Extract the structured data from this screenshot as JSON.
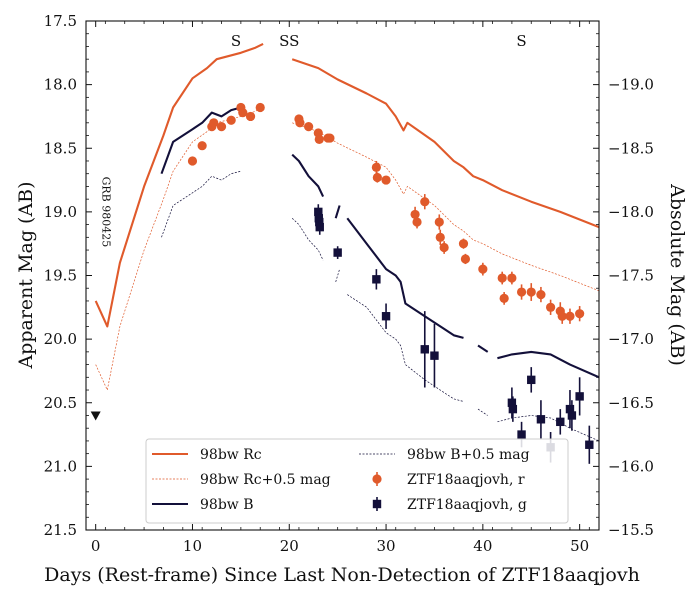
{
  "chart_data": {
    "type": "scatter",
    "xlabel": "Days (Rest-frame) Since Last Non-Detection of ZTF18aaqjovh",
    "ylabel": "Apparent Mag (AB)",
    "ylabel_right": "Absolute Mag (AB)",
    "xlim": [
      -1,
      52
    ],
    "ylim": [
      21.5,
      17.5
    ],
    "ylim_right": [
      -15.5,
      -19.5
    ],
    "xticks": [
      0,
      10,
      20,
      30,
      40,
      50
    ],
    "yticks": [
      17.5,
      18.0,
      18.5,
      19.0,
      19.5,
      20.0,
      20.5,
      21.0,
      21.5
    ],
    "yticks_right": [
      -19.0,
      -18.5,
      -18.0,
      -17.5,
      -17.0,
      -16.5,
      -16.0,
      -15.5
    ],
    "colors": {
      "r": "#e05a2b",
      "g": "#13103a"
    },
    "annotations": [
      {
        "text": "S",
        "x": 14.5,
        "y": 17.65
      },
      {
        "text": "SS",
        "x": 20.0,
        "y": 17.65
      },
      {
        "text": "S",
        "x": 44.0,
        "y": 17.65
      },
      {
        "text": "GRB 980425",
        "x": 0.7,
        "y": 19.0
      }
    ],
    "upper_limit": {
      "x": 0,
      "y": 20.6,
      "label": "non-detection"
    },
    "series": [
      {
        "name": "98bw Rc",
        "legend": "98bw Rc",
        "style": "solid-thick",
        "color": "#e05a2b",
        "segments": [
          [
            [
              0,
              19.7
            ],
            [
              1.2,
              19.9
            ],
            [
              2.5,
              19.4
            ],
            [
              5,
              18.8
            ],
            [
              7,
              18.4
            ],
            [
              8,
              18.18
            ],
            [
              10,
              17.95
            ],
            [
              11.5,
              17.87
            ],
            [
              12.5,
              17.8
            ],
            [
              15,
              17.75
            ],
            [
              16.5,
              17.71
            ],
            [
              17.3,
              17.68
            ]
          ],
          [
            [
              20.3,
              17.8
            ],
            [
              23,
              17.87
            ],
            [
              25,
              17.96
            ],
            [
              28,
              18.07
            ],
            [
              30,
              18.15
            ],
            [
              31,
              18.25
            ],
            [
              31.8,
              18.36
            ],
            [
              32.2,
              18.3
            ],
            [
              35,
              18.45
            ],
            [
              37,
              18.6
            ],
            [
              38,
              18.65
            ],
            [
              39,
              18.72
            ],
            [
              40,
              18.75
            ],
            [
              42,
              18.83
            ],
            [
              45,
              18.92
            ],
            [
              48,
              19.0
            ],
            [
              52,
              19.12
            ]
          ]
        ]
      },
      {
        "name": "98bw Rc+0.5 mag",
        "legend": "98bw Rc+0.5 mag",
        "style": "dotted",
        "color": "#e05a2b",
        "segments": [
          [
            [
              0,
              20.2
            ],
            [
              1.2,
              20.4
            ],
            [
              2.5,
              19.9
            ],
            [
              5,
              19.3
            ],
            [
              7,
              18.9
            ],
            [
              8,
              18.68
            ],
            [
              10,
              18.45
            ],
            [
              11.5,
              18.37
            ],
            [
              12.5,
              18.3
            ],
            [
              15,
              18.25
            ],
            [
              16.5,
              18.21
            ],
            [
              17.3,
              18.18
            ]
          ],
          [
            [
              20.3,
              18.3
            ],
            [
              23,
              18.37
            ],
            [
              25,
              18.46
            ],
            [
              28,
              18.57
            ],
            [
              30,
              18.65
            ],
            [
              31,
              18.75
            ],
            [
              31.8,
              18.86
            ],
            [
              32.2,
              18.8
            ],
            [
              35,
              18.95
            ],
            [
              37,
              19.1
            ],
            [
              38,
              19.15
            ],
            [
              39,
              19.22
            ],
            [
              40,
              19.25
            ],
            [
              42,
              19.33
            ],
            [
              45,
              19.42
            ],
            [
              48,
              19.5
            ],
            [
              52,
              19.62
            ]
          ]
        ]
      },
      {
        "name": "98bw B",
        "legend": "98bw B",
        "style": "solid-thick",
        "color": "#13103a",
        "segments": [
          [
            [
              6.8,
              18.7
            ],
            [
              8,
              18.45
            ],
            [
              10,
              18.35
            ],
            [
              11,
              18.3
            ],
            [
              12,
              18.22
            ],
            [
              13,
              18.25
            ],
            [
              14,
              18.2
            ],
            [
              15,
              18.18
            ]
          ],
          [
            [
              20.3,
              18.55
            ],
            [
              21,
              18.6
            ],
            [
              22,
              18.72
            ],
            [
              23,
              18.8
            ],
            [
              23.5,
              18.88
            ]
          ],
          [
            [
              24.8,
              19.05
            ],
            [
              25.2,
              18.95
            ]
          ],
          [
            [
              26,
              19.05
            ],
            [
              28,
              19.25
            ],
            [
              30,
              19.45
            ],
            [
              31,
              19.5
            ],
            [
              31.5,
              19.55
            ],
            [
              32,
              19.72
            ],
            [
              34,
              19.82
            ],
            [
              36,
              19.92
            ],
            [
              37,
              19.97
            ],
            [
              38,
              19.99
            ]
          ],
          [
            [
              39.5,
              20.05
            ],
            [
              40.5,
              20.1
            ]
          ],
          [
            [
              41.5,
              20.15
            ],
            [
              43,
              20.12
            ],
            [
              45,
              20.1
            ],
            [
              47,
              20.12
            ],
            [
              49,
              20.2
            ],
            [
              52,
              20.3
            ]
          ]
        ]
      },
      {
        "name": "98bw B+0.5 mag",
        "legend": "98bw B+0.5 mag",
        "style": "dashed-thin",
        "color": "#13103a",
        "segments": [
          [
            [
              6.8,
              19.2
            ],
            [
              8,
              18.95
            ],
            [
              10,
              18.85
            ],
            [
              11,
              18.8
            ],
            [
              12,
              18.72
            ],
            [
              13,
              18.75
            ],
            [
              14,
              18.7
            ],
            [
              15,
              18.68
            ]
          ],
          [
            [
              20.3,
              19.05
            ],
            [
              21,
              19.1
            ],
            [
              22,
              19.22
            ],
            [
              23,
              19.3
            ],
            [
              23.5,
              19.38
            ]
          ],
          [
            [
              24.8,
              19.55
            ],
            [
              25.2,
              19.45
            ]
          ],
          [
            [
              26,
              19.65
            ],
            [
              28,
              19.75
            ],
            [
              30,
              19.95
            ],
            [
              31,
              20.0
            ],
            [
              31.5,
              20.05
            ],
            [
              32,
              20.2
            ],
            [
              34,
              20.32
            ],
            [
              36,
              20.42
            ],
            [
              37,
              20.47
            ],
            [
              38,
              20.49
            ]
          ],
          [
            [
              39.5,
              20.55
            ],
            [
              40.5,
              20.6
            ]
          ],
          [
            [
              41.5,
              20.65
            ],
            [
              43,
              20.62
            ],
            [
              45,
              20.6
            ],
            [
              47,
              20.62
            ],
            [
              49,
              20.7
            ],
            [
              52,
              20.8
            ]
          ]
        ]
      },
      {
        "name": "ZTF18aaqjovh, r",
        "legend": "ZTF18aaqjovh, r",
        "style": "circle-points",
        "color": "#e05a2b",
        "points": [
          [
            10,
            18.6,
            0.03
          ],
          [
            11,
            18.48,
            0.03
          ],
          [
            12,
            18.33,
            0.03
          ],
          [
            12.2,
            18.3,
            0.03
          ],
          [
            13,
            18.33,
            0.03
          ],
          [
            14,
            18.28,
            0.03
          ],
          [
            15,
            18.18,
            0.03
          ],
          [
            15.2,
            18.22,
            0.03
          ],
          [
            16,
            18.25,
            0.03
          ],
          [
            17,
            18.18,
            0.03
          ],
          [
            21,
            18.27,
            0.03
          ],
          [
            21.1,
            18.3,
            0.03
          ],
          [
            22,
            18.33,
            0.03
          ],
          [
            23,
            18.38,
            0.03
          ],
          [
            23.1,
            18.43,
            0.03
          ],
          [
            24,
            18.42,
            0.03
          ],
          [
            24.2,
            18.42,
            0.03
          ],
          [
            29,
            18.65,
            0.05
          ],
          [
            29.1,
            18.73,
            0.04
          ],
          [
            30,
            18.75,
            0.03
          ],
          [
            33,
            19.02,
            0.06
          ],
          [
            33.2,
            19.08,
            0.05
          ],
          [
            34,
            18.92,
            0.06
          ],
          [
            35.5,
            19.08,
            0.06
          ],
          [
            35.6,
            19.2,
            0.06
          ],
          [
            36,
            19.28,
            0.05
          ],
          [
            38,
            19.25,
            0.04
          ],
          [
            38.2,
            19.37,
            0.04
          ],
          [
            40,
            19.45,
            0.05
          ],
          [
            42,
            19.52,
            0.05
          ],
          [
            42.2,
            19.68,
            0.05
          ],
          [
            43,
            19.52,
            0.05
          ],
          [
            44,
            19.63,
            0.06
          ],
          [
            45,
            19.63,
            0.07
          ],
          [
            46,
            19.65,
            0.06
          ],
          [
            47,
            19.75,
            0.06
          ],
          [
            48,
            19.78,
            0.07
          ],
          [
            48.2,
            19.82,
            0.06
          ],
          [
            49,
            19.82,
            0.06
          ],
          [
            50,
            19.8,
            0.06
          ]
        ]
      },
      {
        "name": "ZTF18aaqjovh, g",
        "legend": "ZTF18aaqjovh, g",
        "style": "square-points",
        "color": "#13103a",
        "points": [
          [
            23,
            19.0,
            0.06
          ],
          [
            23.05,
            19.05,
            0.06
          ],
          [
            23.1,
            19.08,
            0.06
          ],
          [
            23.15,
            19.12,
            0.06
          ],
          [
            25,
            19.32,
            0.05
          ],
          [
            29,
            19.53,
            0.08
          ],
          [
            30,
            19.82,
            0.1
          ],
          [
            34,
            20.08,
            0.3
          ],
          [
            35,
            20.13,
            0.25
          ],
          [
            43,
            20.5,
            0.12
          ],
          [
            43.1,
            20.55,
            0.1
          ],
          [
            44,
            20.75,
            0.1
          ],
          [
            45,
            20.32,
            0.1
          ],
          [
            46,
            20.63,
            0.15
          ],
          [
            47,
            20.85,
            0.12
          ],
          [
            48,
            20.65,
            0.1
          ],
          [
            49,
            20.55,
            0.15
          ],
          [
            49.2,
            20.6,
            0.12
          ],
          [
            50,
            20.45,
            0.15
          ],
          [
            51,
            20.83,
            0.15
          ]
        ]
      }
    ],
    "legend": {
      "position": "lower-center",
      "columns": 2,
      "items": [
        "98bw Rc",
        "98bw B+0.5 mag",
        "98bw Rc+0.5 mag",
        "ZTF18aaqjovh, r",
        "98bw B",
        "ZTF18aaqjovh, g"
      ]
    }
  }
}
